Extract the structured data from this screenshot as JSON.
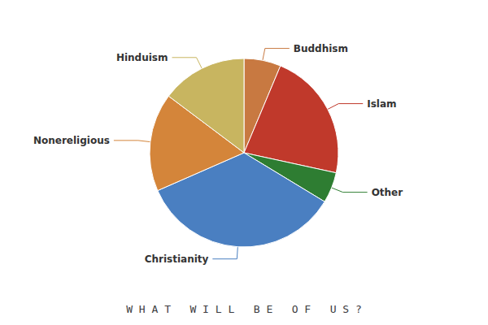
{
  "chart_data": {
    "type": "pie",
    "title": "W H A T   W I L L   B E   O F   U S ?",
    "categories": [
      "Buddhism",
      "Islam",
      "Other",
      "Christianity",
      "Nonereligious",
      "Hinduism"
    ],
    "values": [
      6,
      21,
      5,
      33,
      16,
      14
    ],
    "colors": [
      "#c87941",
      "#c0392b",
      "#2e7d32",
      "#4a7fc1",
      "#d4853a",
      "#c8b560"
    ]
  }
}
